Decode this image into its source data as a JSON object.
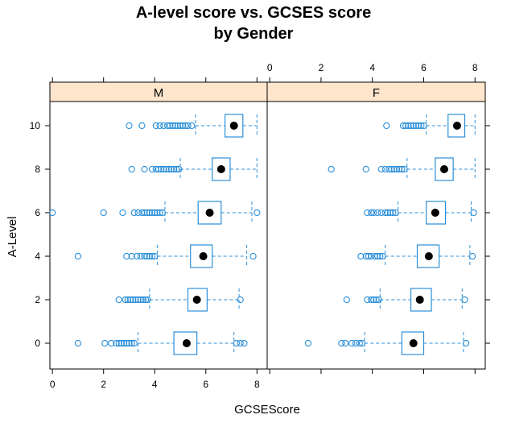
{
  "chart_data": {
    "type": "box",
    "title_line1": "A-level score vs. GCSES score",
    "title_line2": "by Gender",
    "xlabel": "GCSEScore",
    "ylabel": "A-Level",
    "xlim": [
      -0.1,
      8.4
    ],
    "x_ticks": [
      0,
      2,
      4,
      6,
      8
    ],
    "x_tick_labels": [
      "0",
      "2",
      "4",
      "6",
      "8"
    ],
    "categories": [
      "0",
      "2",
      "4",
      "6",
      "8",
      "10"
    ],
    "colors": {
      "box": "#2b8fd9",
      "strip": "#ffe5cc",
      "median": "#000000"
    },
    "panels": [
      {
        "name": "M",
        "groups": [
          {
            "y": "0",
            "q1": 4.75,
            "median": 5.25,
            "q3": 5.65,
            "wlo": 3.35,
            "whi": 7.1,
            "outliers": [
              1.0,
              2.05,
              2.3,
              2.5,
              2.6,
              2.7,
              2.8,
              2.9,
              3.0,
              3.1,
              3.2,
              7.2,
              7.35,
              7.5
            ]
          },
          {
            "y": "2",
            "q1": 5.3,
            "median": 5.65,
            "q3": 6.05,
            "wlo": 3.8,
            "whi": 7.3,
            "outliers": [
              2.6,
              2.85,
              2.95,
              3.05,
              3.15,
              3.25,
              3.35,
              3.45,
              3.55,
              3.65,
              3.72,
              7.35
            ]
          },
          {
            "y": "4",
            "q1": 5.4,
            "median": 5.9,
            "q3": 6.25,
            "wlo": 4.1,
            "whi": 7.6,
            "outliers": [
              1.0,
              2.9,
              3.1,
              3.3,
              3.45,
              3.6,
              3.7,
              3.8,
              3.9,
              4.0,
              7.85
            ]
          },
          {
            "y": "6",
            "q1": 5.7,
            "median": 6.15,
            "q3": 6.6,
            "wlo": 4.4,
            "whi": 7.8,
            "outliers": [
              0.0,
              2.0,
              2.75,
              3.2,
              3.35,
              3.5,
              3.6,
              3.7,
              3.8,
              3.9,
              4.0,
              4.1,
              4.2,
              4.3,
              8.0
            ]
          },
          {
            "y": "8",
            "q1": 6.25,
            "median": 6.6,
            "q3": 6.95,
            "wlo": 5.0,
            "whi": 8.0,
            "outliers": [
              3.1,
              3.6,
              3.9,
              4.05,
              4.15,
              4.25,
              4.35,
              4.45,
              4.55,
              4.65,
              4.75,
              4.85,
              4.95
            ]
          },
          {
            "y": "10",
            "q1": 6.75,
            "median": 7.1,
            "q3": 7.45,
            "wlo": 5.6,
            "whi": 8.0,
            "outliers": [
              3.0,
              3.5,
              4.05,
              4.2,
              4.35,
              4.5,
              4.6,
              4.7,
              4.8,
              4.9,
              5.0,
              5.1,
              5.2,
              5.3,
              5.45
            ]
          }
        ]
      },
      {
        "name": "F",
        "groups": [
          {
            "y": "0",
            "q1": 5.15,
            "median": 5.6,
            "q3": 6.0,
            "wlo": 3.7,
            "whi": 7.55,
            "outliers": [
              1.5,
              2.8,
              2.95,
              3.2,
              3.35,
              3.5,
              3.6,
              7.65
            ]
          },
          {
            "y": "2",
            "q1": 5.5,
            "median": 5.85,
            "q3": 6.3,
            "wlo": 4.3,
            "whi": 7.5,
            "outliers": [
              3.0,
              3.8,
              3.95,
              4.05,
              4.15,
              4.25,
              7.6
            ]
          },
          {
            "y": "4",
            "q1": 5.75,
            "median": 6.2,
            "q3": 6.6,
            "wlo": 4.5,
            "whi": 7.8,
            "outliers": [
              3.55,
              3.75,
              3.85,
              3.95,
              4.1,
              4.2,
              4.3,
              4.4,
              7.9
            ]
          },
          {
            "y": "6",
            "q1": 6.1,
            "median": 6.45,
            "q3": 6.85,
            "wlo": 5.0,
            "whi": 7.85,
            "outliers": [
              3.8,
              3.95,
              4.05,
              4.2,
              4.35,
              4.5,
              4.6,
              4.7,
              4.8,
              4.9,
              7.95
            ]
          },
          {
            "y": "8",
            "q1": 6.45,
            "median": 6.8,
            "q3": 7.15,
            "wlo": 5.35,
            "whi": 8.0,
            "outliers": [
              2.4,
              3.75,
              4.35,
              4.5,
              4.65,
              4.75,
              4.85,
              4.95,
              5.05,
              5.15,
              5.25
            ]
          },
          {
            "y": "10",
            "q1": 6.95,
            "median": 7.3,
            "q3": 7.6,
            "wlo": 6.1,
            "whi": 8.0,
            "outliers": [
              4.55,
              5.2,
              5.3,
              5.4,
              5.5,
              5.6,
              5.7,
              5.8,
              5.9,
              6.0
            ]
          }
        ]
      }
    ]
  }
}
